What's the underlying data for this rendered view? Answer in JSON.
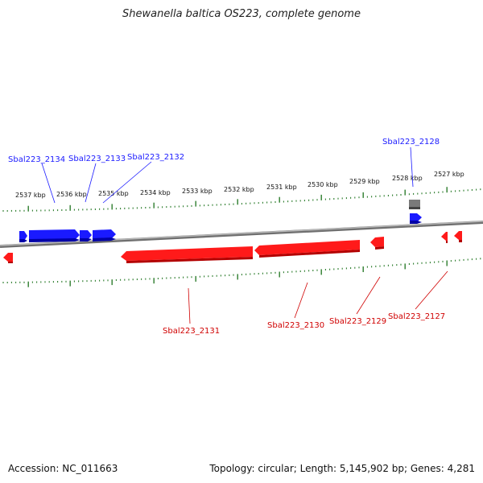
{
  "title": "Shewanella baltica OS223, complete genome",
  "footer": {
    "accession": "Accession: NC_011663",
    "summary": "Topology: circular; Length: 5,145,902 bp; Genes: 4,281"
  },
  "colors": {
    "forward": "#1a1aff",
    "reverse": "#ff0000",
    "other": "#7a7a7a",
    "tick": "#2e7d2e",
    "backbone": "#8a8a8a"
  },
  "ruler": {
    "labels": [
      "2537 kbp",
      "2536 kbp",
      "2535 kbp",
      "2534 kbp",
      "2533 kbp",
      "2532 kbp",
      "2531 kbp",
      "2530 kbp",
      "2529 kbp",
      "2528 kbp",
      "2527 kbp"
    ]
  },
  "genes": [
    {
      "label": "Sbal223_2134",
      "strand": "forward"
    },
    {
      "label": "Sbal223_2133",
      "strand": "forward"
    },
    {
      "label": "Sbal223_2132",
      "strand": "forward"
    },
    {
      "label": "Sbal223_2128",
      "strand": "forward"
    },
    {
      "label": "Sbal223_2131",
      "strand": "reverse"
    },
    {
      "label": "Sbal223_2130",
      "strand": "reverse"
    },
    {
      "label": "Sbal223_2129",
      "strand": "reverse"
    },
    {
      "label": "Sbal223_2127",
      "strand": "reverse"
    }
  ]
}
